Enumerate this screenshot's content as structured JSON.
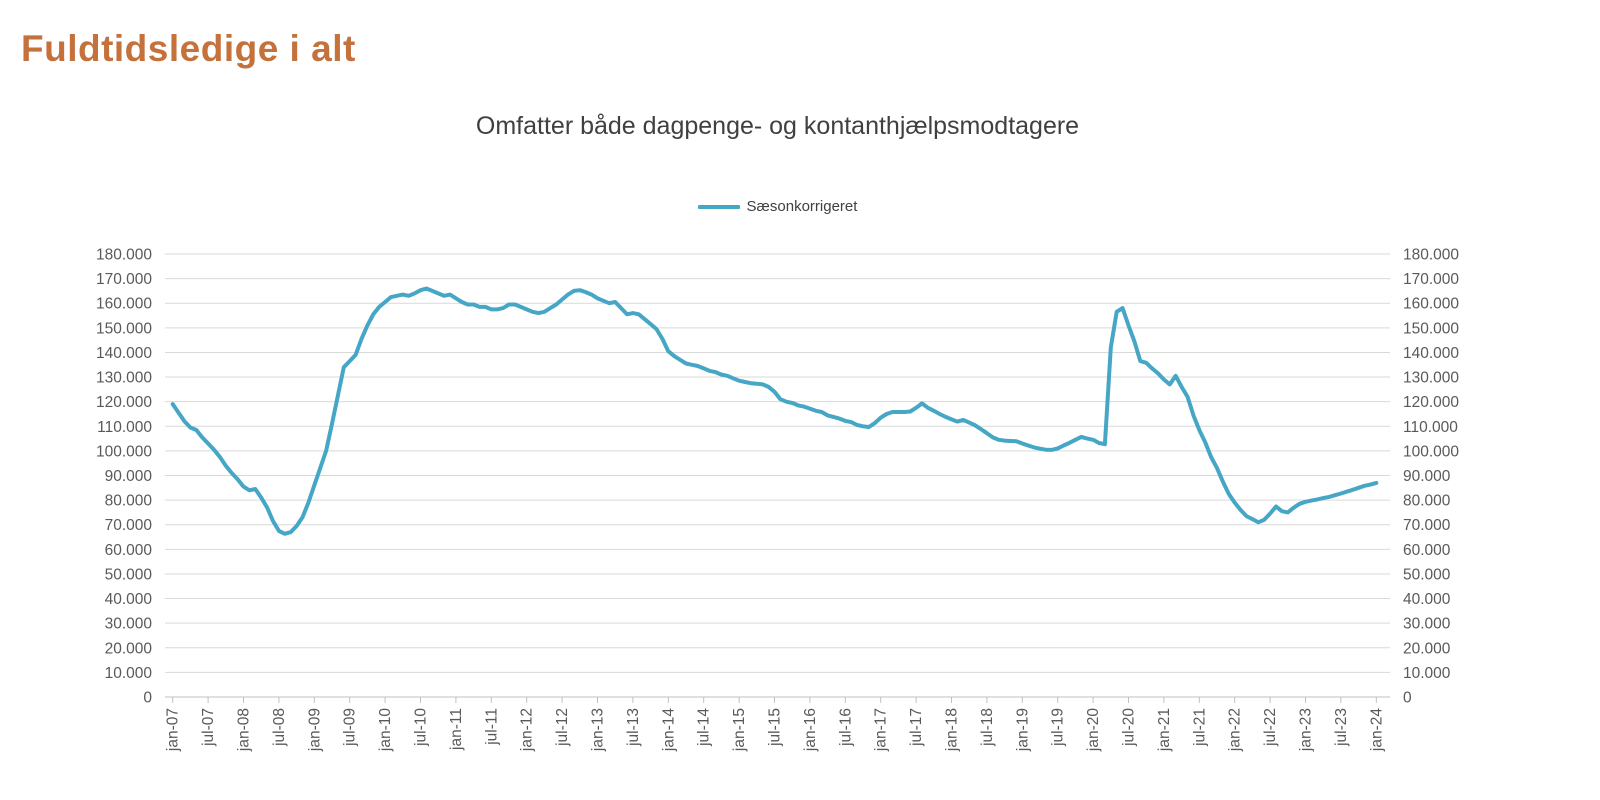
{
  "header": {
    "title": "Fuldtidsledige i alt",
    "title_color": "#C4713B"
  },
  "chart_data": {
    "type": "line",
    "title": "Omfatter både dagpenge- og kontanthjælpsmodtagere",
    "title_color": "#404040",
    "legend_position": "top-center",
    "grid": "horizontal",
    "grid_color": "#D9D9D9",
    "axis_color": "#BFBFBF",
    "tick_label_color": "#595959",
    "ylim": [
      0,
      180000
    ],
    "y_tick_step": 10000,
    "y_tick_labels": [
      "0",
      "10.000",
      "20.000",
      "30.000",
      "40.000",
      "50.000",
      "60.000",
      "70.000",
      "80.000",
      "90.000",
      "100.000",
      "110.000",
      "120.000",
      "130.000",
      "140.000",
      "150.000",
      "160.000",
      "170.000",
      "180.000"
    ],
    "x_start": "jan-07",
    "x_end": "jan-24",
    "frequency": "monthly",
    "x_tick_every_n_points": 6,
    "x_tick_labels": [
      "jan-07",
      "jul-07",
      "jan-08",
      "jul-08",
      "jan-09",
      "jul-09",
      "jan-10",
      "jul-10",
      "jan-11",
      "jul-11",
      "jan-12",
      "jul-12",
      "jan-13",
      "jul-13",
      "jan-14",
      "jul-14",
      "jan-15",
      "jul-15",
      "jan-16",
      "jul-16",
      "jan-17",
      "jul-17",
      "jan-18",
      "jul-18",
      "jan-19",
      "jul-19",
      "jan-20",
      "jul-20",
      "jan-21",
      "jul-21",
      "jan-22",
      "jul-22",
      "jan-23",
      "jul-23",
      "jan-24"
    ],
    "legend": [
      {
        "label": "Sæsonkorrigeret",
        "color": "#46A6C5"
      }
    ],
    "series": [
      {
        "name": "Sæsonkorrigeret",
        "color": "#46A6C5",
        "values": [
          119000,
          115500,
          112000,
          109500,
          108500,
          105500,
          103000,
          100500,
          97500,
          94000,
          91000,
          88500,
          85500,
          84000,
          84500,
          81000,
          77000,
          71500,
          67500,
          66300,
          67000,
          69500,
          73000,
          79000,
          86000,
          93000,
          100000,
          111000,
          122500,
          134000,
          136500,
          139000,
          145500,
          151000,
          155500,
          158500,
          160500,
          162500,
          163000,
          163500,
          163000,
          164000,
          165300,
          166000,
          165000,
          164000,
          163000,
          163500,
          162000,
          160500,
          159500,
          159500,
          158500,
          158500,
          157500,
          157500,
          158000,
          159500,
          159500,
          158500,
          157500,
          156500,
          156000,
          156500,
          158000,
          159500,
          161500,
          163500,
          165000,
          165300,
          164500,
          163500,
          162000,
          161000,
          160000,
          160500,
          158000,
          155500,
          156000,
          155500,
          153500,
          151500,
          149500,
          145500,
          140500,
          138500,
          137000,
          135500,
          135000,
          134500,
          133500,
          132500,
          132000,
          131000,
          130500,
          129500,
          128500,
          128000,
          127500,
          127300,
          127000,
          126000,
          124000,
          121000,
          120000,
          119500,
          118500,
          118000,
          117200,
          116300,
          115800,
          114400,
          113800,
          113100,
          112200,
          111700,
          110500,
          110000,
          109700,
          111300,
          113500,
          115000,
          115800,
          115800,
          115800,
          116000,
          117500,
          119300,
          117500,
          116300,
          115000,
          113800,
          112800,
          111900,
          112600,
          111500,
          110400,
          108800,
          107200,
          105500,
          104500,
          104200,
          104000,
          103900,
          103000,
          102200,
          101400,
          100900,
          100500,
          100400,
          101000,
          102200,
          103300,
          104500,
          105700,
          105000,
          104500,
          103200,
          102700,
          142000,
          156500,
          158000,
          151000,
          144500,
          136500,
          135800,
          133500,
          131500,
          129000,
          127000,
          130500,
          126000,
          122000,
          114500,
          108500,
          103500,
          97500,
          93000,
          87500,
          82500,
          79000,
          76000,
          73500,
          72300,
          71000,
          72000,
          74500,
          77400,
          75500,
          75000,
          76900,
          78500,
          79300,
          79800,
          80300,
          80800,
          81300,
          82000,
          82700,
          83400,
          84200,
          85000,
          85800,
          86300,
          87000
        ]
      }
    ]
  }
}
